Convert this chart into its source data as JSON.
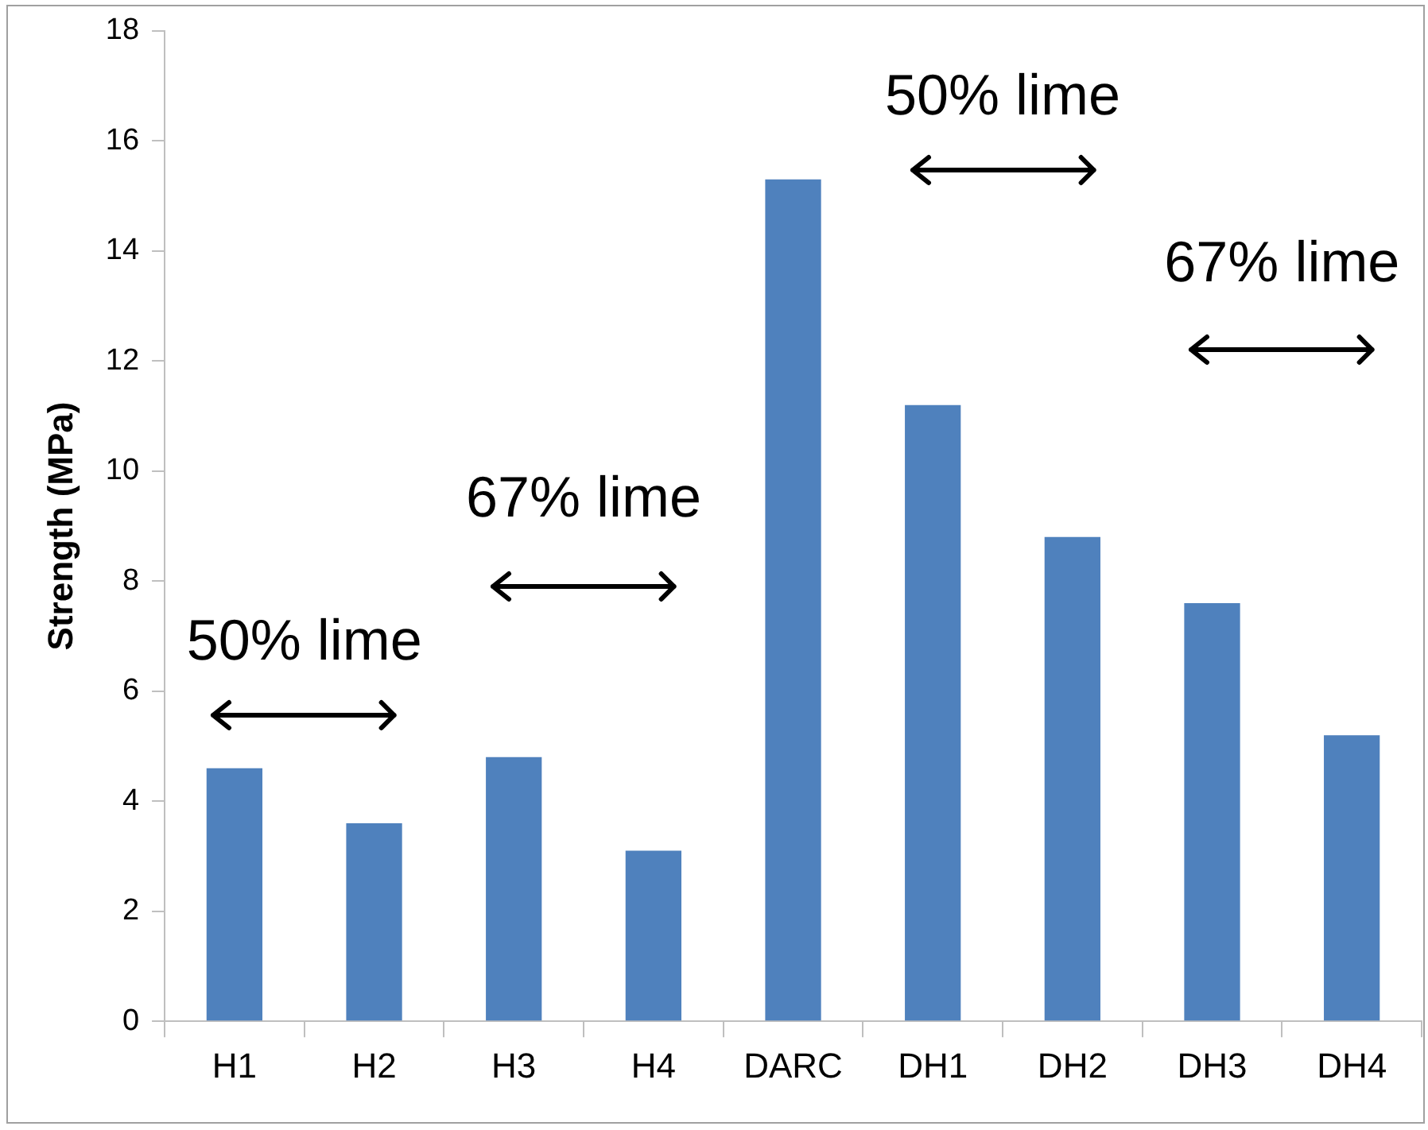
{
  "chart_data": {
    "type": "bar",
    "ylabel": "Strength (MPa)",
    "categories": [
      "H1",
      "H2",
      "H3",
      "H4",
      "DARC",
      "DH1",
      "DH2",
      "DH3",
      "DH4"
    ],
    "values": [
      4.6,
      3.6,
      4.8,
      3.1,
      15.3,
      11.2,
      8.8,
      7.6,
      5.2
    ],
    "color": "#4f81bd",
    "ylim": [
      0,
      18
    ],
    "yticks": [
      0,
      2,
      4,
      6,
      8,
      10,
      12,
      14,
      16,
      18
    ],
    "grid": false,
    "legend": false,
    "annotations": [
      "50% lime",
      "67% lime",
      "50% lime",
      "67% lime"
    ]
  }
}
